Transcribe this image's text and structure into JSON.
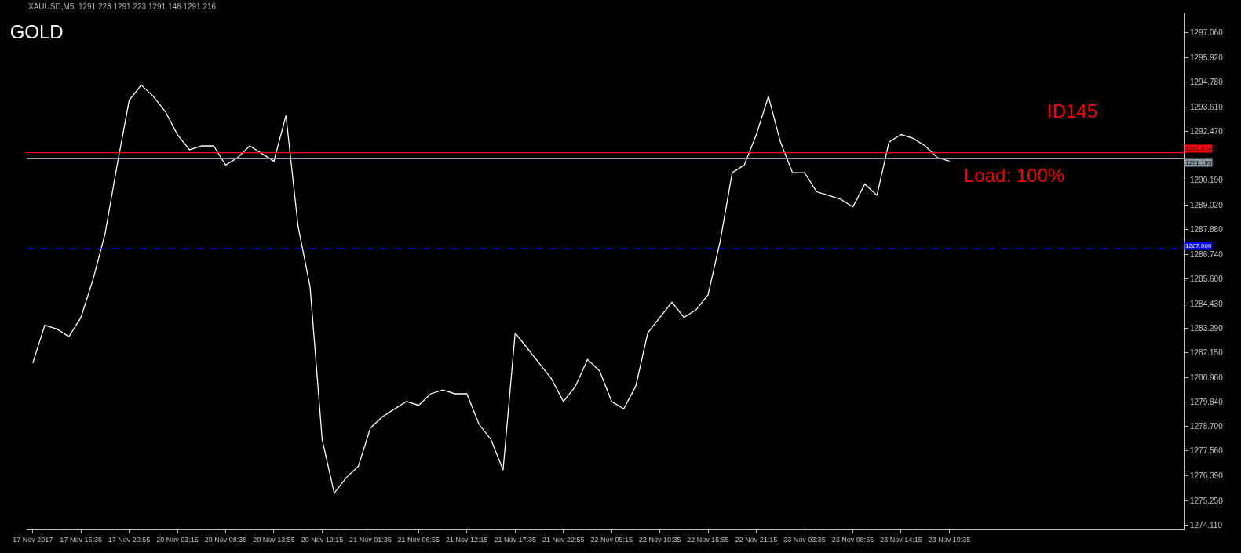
{
  "chart_data": {
    "type": "line",
    "title": "GOLD",
    "annotations": [
      "XAUUSD,M5  1291.223 1291.223 1291.146 1291.216",
      "ID145",
      "Load: 100%"
    ],
    "categories": [
      "17 Nov 2017",
      null,
      null,
      null,
      "17 Nov 15:35",
      null,
      null,
      null,
      "17 Nov 20:55",
      null,
      null,
      null,
      "20 Nov 03:15",
      null,
      null,
      null,
      "20 Nov 08:35",
      null,
      null,
      null,
      "20 Nov 13:55",
      null,
      null,
      null,
      "20 Nov 19:15",
      null,
      null,
      null,
      "21 Nov 01:35",
      null,
      null,
      null,
      "21 Nov 06:55",
      null,
      null,
      null,
      "21 Nov 12:15",
      null,
      null,
      null,
      "21 Nov 17:35",
      null,
      null,
      null,
      "21 Nov 22:55",
      null,
      null,
      null,
      "22 Nov 05:15",
      null,
      null,
      null,
      "22 Nov 10:35",
      null,
      null,
      null,
      "22 Nov 15:55",
      null,
      null,
      null,
      "22 Nov 21:15",
      null,
      null,
      null,
      "23 Nov 03:35",
      null,
      null,
      null,
      "23 Nov 08:55",
      null,
      null,
      null,
      "23 Nov 14:15",
      null,
      null,
      null,
      "23 Nov 19:35",
      null,
      null,
      null,
      null,
      null,
      null,
      null,
      null,
      null,
      null,
      null,
      null,
      null,
      null,
      null,
      null,
      null,
      null,
      null
    ],
    "series": [
      {
        "color": "#ffffff",
        "values": [
          1281.65,
          1283.43,
          1283.25,
          1282.9,
          1283.79,
          1285.56,
          1287.7,
          1290.9,
          1293.92,
          1294.63,
          1294.1,
          1293.39,
          1292.32,
          1291.61,
          1291.79,
          1291.79,
          1290.9,
          1291.25,
          1291.79,
          1291.43,
          1291.08,
          1293.21,
          1288.05,
          1285.21,
          1278.09,
          1275.6,
          1276.32,
          1276.85,
          1278.63,
          1279.16,
          1279.52,
          1279.87,
          1279.69,
          1280.23,
          1280.41,
          1280.23,
          1280.23,
          1278.81,
          1278.09,
          1276.67,
          1283.07,
          1282.36,
          1281.65,
          1280.94,
          1279.87,
          1280.58,
          1281.83,
          1281.3,
          1279.87,
          1279.52,
          1280.58,
          1283.07,
          1283.79,
          1284.5,
          1283.79,
          1284.14,
          1284.85,
          1287.34,
          1290.54,
          1290.9,
          1292.32,
          1294.1,
          1291.97,
          1290.54,
          1290.54,
          1289.65,
          1289.48,
          1289.3,
          1288.94,
          1290.01,
          1289.48,
          1291.97,
          1292.32,
          1292.14,
          1291.79,
          1291.25,
          1291.08,
          null,
          null,
          null,
          null,
          null,
          null,
          null,
          null,
          null,
          null,
          null,
          null,
          null,
          null,
          null,
          null,
          null,
          null,
          null
        ]
      }
    ],
    "ylim": [
      1273.9,
      1298.01
    ],
    "yticks": [
      {
        "value": 1274.11,
        "label": "1274.110"
      },
      {
        "value": 1275.25,
        "label": "1275.250"
      },
      {
        "value": 1276.39,
        "label": "1276.390"
      },
      {
        "value": 1277.56,
        "label": "1277.560"
      },
      {
        "value": 1278.7,
        "label": "1278.700"
      },
      {
        "value": 1279.84,
        "label": "1279.840"
      },
      {
        "value": 1280.98,
        "label": "1280.980"
      },
      {
        "value": 1282.15,
        "label": "1282.150"
      },
      {
        "value": 1283.29,
        "label": "1283.290"
      },
      {
        "value": 1284.43,
        "label": "1284.430"
      },
      {
        "value": 1285.6,
        "label": "1285.600"
      },
      {
        "value": 1286.74,
        "label": "1286.740"
      },
      {
        "value": 1287.88,
        "label": "1287.880"
      },
      {
        "value": 1289.02,
        "label": "1289.020"
      },
      {
        "value": 1290.19,
        "label": "1290.190"
      },
      {
        "value": 1292.47,
        "label": "1292.470"
      },
      {
        "value": 1293.61,
        "label": "1293.610"
      },
      {
        "value": 1294.78,
        "label": "1294.780"
      },
      {
        "value": 1295.92,
        "label": "1295.920"
      },
      {
        "value": 1297.06,
        "label": "1297.060"
      }
    ],
    "ref_lines": [
      {
        "axis": "y",
        "value": 1291.474,
        "label": "1291.474",
        "color": "#ff0000",
        "line_style": "solid"
      },
      {
        "axis": "y",
        "value": 1291.193,
        "label": "1291.193",
        "color": "#8c9aa6",
        "line_style": "solid"
      },
      {
        "axis": "y",
        "value": 1287.0,
        "label": "1287.000",
        "color": "#0000ff",
        "line_style": "dashed"
      }
    ],
    "grid": false,
    "marker": "none",
    "line_style": "solid"
  }
}
